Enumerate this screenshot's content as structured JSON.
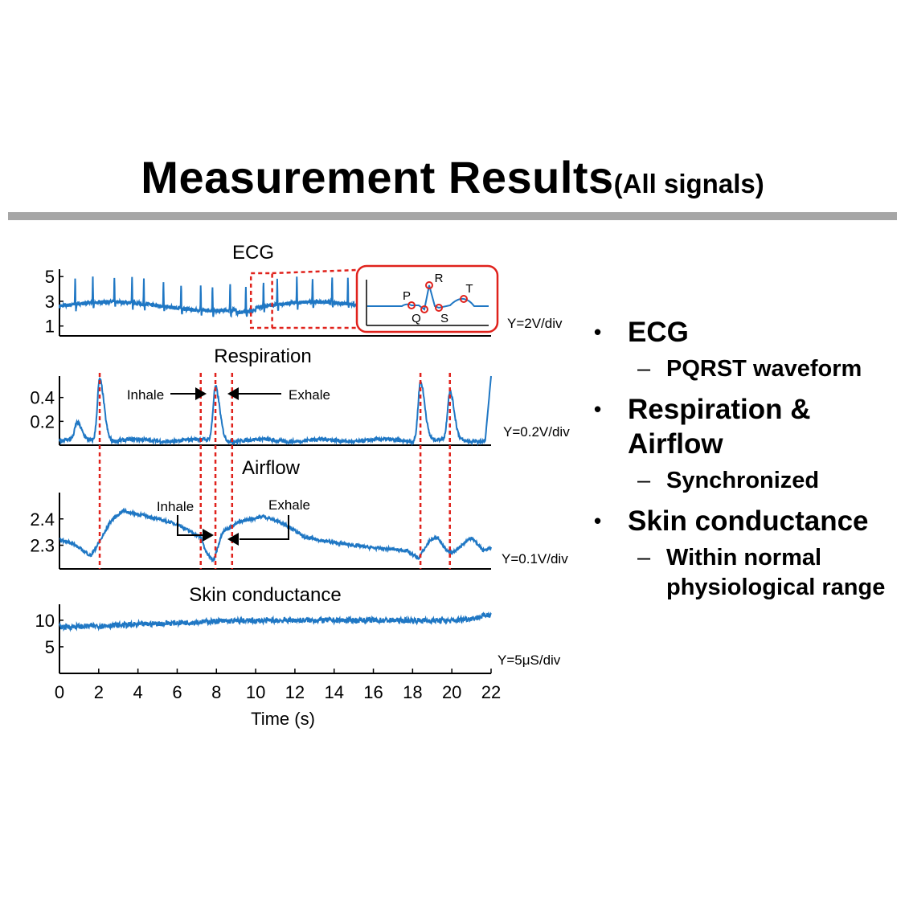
{
  "slide": {
    "title": "Measurement Results",
    "title_suffix": "(All signals)"
  },
  "bullets": [
    {
      "text": "ECG",
      "sub": [
        "PQRST waveform"
      ]
    },
    {
      "text": "Respiration & Airflow",
      "sub": [
        "Synchronized"
      ]
    },
    {
      "text": "Skin conductance",
      "sub": [
        "Within normal physiological range"
      ]
    }
  ],
  "chart_data": [
    {
      "type": "line",
      "title": "ECG",
      "scale_label": "Y=2V/div",
      "yticks": [
        1,
        3,
        5
      ],
      "ylim": [
        0.2,
        5.6
      ],
      "xlim": [
        0,
        22
      ],
      "baseline": 2.6,
      "beat_times": [
        0.8,
        1.7,
        2.8,
        3.7,
        4.3,
        5.3,
        6.2,
        7.2,
        7.8,
        8.7,
        9.5,
        10.4,
        11.1,
        12.1,
        12.9,
        13.9,
        14.7,
        15.2
      ],
      "peak_value": 4.6,
      "zoom_window": [
        9.8,
        10.8
      ],
      "inset": {
        "labels": [
          "P",
          "Q",
          "R",
          "S",
          "T"
        ]
      }
    },
    {
      "type": "line",
      "title": "Respiration",
      "scale_label": "Y=0.2V/div",
      "yticks": [
        0.2,
        0.4
      ],
      "ylim": [
        0.0,
        0.58
      ],
      "xlim": [
        0,
        22
      ],
      "baseline": 0.04,
      "peaks": [
        {
          "t": 0.9,
          "v": 0.18
        },
        {
          "t": 2.05,
          "v": 0.56
        },
        {
          "t": 7.95,
          "v": 0.49
        },
        {
          "t": 18.4,
          "v": 0.54
        },
        {
          "t": 19.9,
          "v": 0.44
        }
      ],
      "end_rise": 0.58,
      "annotations": [
        "Inhale",
        "Exhale"
      ]
    },
    {
      "type": "line",
      "title": "Airflow",
      "scale_label": "Y=0.1V/div",
      "yticks": [
        2.3,
        2.4
      ],
      "ylim": [
        2.21,
        2.5
      ],
      "xlim": [
        0,
        22
      ],
      "keypoints": [
        [
          0,
          2.32
        ],
        [
          0.6,
          2.31
        ],
        [
          1.6,
          2.26
        ],
        [
          2.1,
          2.32
        ],
        [
          2.6,
          2.39
        ],
        [
          3.2,
          2.43
        ],
        [
          4.5,
          2.41
        ],
        [
          6.0,
          2.38
        ],
        [
          7.2,
          2.33
        ],
        [
          7.5,
          2.27
        ],
        [
          7.85,
          2.24
        ],
        [
          8.3,
          2.35
        ],
        [
          9.2,
          2.39
        ],
        [
          10.4,
          2.41
        ],
        [
          11.5,
          2.38
        ],
        [
          12.5,
          2.33
        ],
        [
          14.0,
          2.31
        ],
        [
          16.0,
          2.29
        ],
        [
          17.7,
          2.28
        ],
        [
          18.3,
          2.25
        ],
        [
          18.9,
          2.32
        ],
        [
          19.3,
          2.33
        ],
        [
          19.7,
          2.28
        ],
        [
          20.0,
          2.27
        ],
        [
          20.5,
          2.3
        ],
        [
          21.0,
          2.33
        ],
        [
          21.6,
          2.28
        ],
        [
          22.0,
          2.29
        ]
      ],
      "annotations": [
        "Inhale",
        "Exhale"
      ]
    },
    {
      "type": "line",
      "title": "Skin conductance",
      "scale_label": "Y=5μS/div",
      "yticks": [
        5,
        10
      ],
      "ylim": [
        0,
        13
      ],
      "xlim": [
        0,
        22
      ],
      "keypoints": [
        [
          0,
          8.7
        ],
        [
          4,
          9.2
        ],
        [
          8,
          9.8
        ],
        [
          12,
          10.0
        ],
        [
          16,
          10.0
        ],
        [
          20,
          9.9
        ],
        [
          21.3,
          10.5
        ],
        [
          22,
          11.2
        ]
      ],
      "xticks": [
        0,
        2,
        4,
        6,
        8,
        10,
        12,
        14,
        16,
        18,
        20,
        22
      ],
      "xlabel": "Time (s)"
    }
  ],
  "sync_markers": [
    2.05,
    7.2,
    7.95,
    8.8,
    18.4,
    19.9
  ]
}
